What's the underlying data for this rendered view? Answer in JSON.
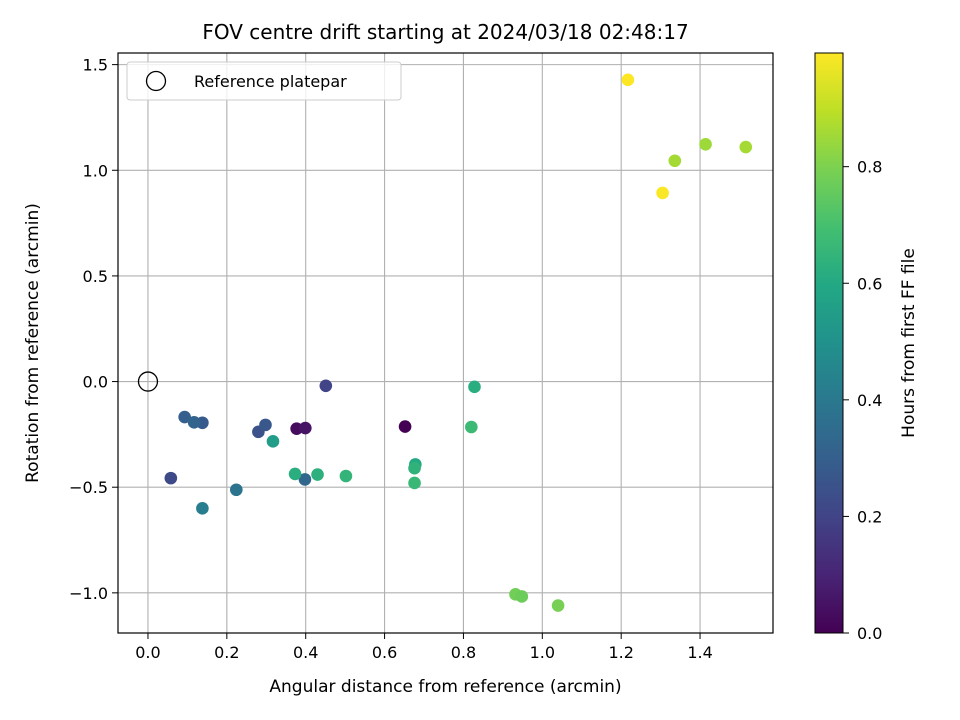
{
  "chart_data": {
    "type": "scatter",
    "title": "FOV centre drift starting at 2024/03/18 02:48:17",
    "xlabel": "Angular distance from reference (arcmin)",
    "ylabel": "Rotation from reference (arcmin)",
    "xlim": [
      -0.076,
      1.585
    ],
    "ylim": [
      -1.19,
      1.555
    ],
    "xticks": [
      0.0,
      0.2,
      0.4,
      0.6,
      0.8,
      1.0,
      1.2,
      1.4
    ],
    "xtick_labels": [
      "0.0",
      "0.2",
      "0.4",
      "0.6",
      "0.8",
      "1.0",
      "1.2",
      "1.4"
    ],
    "yticks": [
      1.5,
      1.0,
      0.5,
      0.0,
      -0.5,
      -1.0
    ],
    "ytick_labels": [
      "1.5",
      "1.0",
      "0.5",
      "0.0",
      "−0.5",
      "−1.0"
    ],
    "grid": true,
    "legend": {
      "placement": "upper-left",
      "entries": [
        "Reference platepar"
      ]
    },
    "reference_point": {
      "x": 0.0,
      "y": 0.0,
      "label": "Reference platepar"
    },
    "colormap": "viridis",
    "colorbar": {
      "label": "Hours from first FF file",
      "range": [
        0.0,
        0.995
      ],
      "ticks": [
        0.0,
        0.2,
        0.4,
        0.6,
        0.8
      ],
      "tick_labels": [
        "0.0",
        "0.2",
        "0.4",
        "0.6",
        "0.8"
      ]
    },
    "points": [
      {
        "x": 0.652,
        "y": -0.213,
        "hours": 0.0
      },
      {
        "x": 0.377,
        "y": -0.223,
        "hours": 0.03
      },
      {
        "x": 0.399,
        "y": -0.22,
        "hours": 0.05
      },
      {
        "x": 0.451,
        "y": -0.02,
        "hours": 0.2
      },
      {
        "x": 0.058,
        "y": -0.457,
        "hours": 0.22
      },
      {
        "x": 0.28,
        "y": -0.238,
        "hours": 0.25
      },
      {
        "x": 0.298,
        "y": -0.205,
        "hours": 0.27
      },
      {
        "x": 0.138,
        "y": -0.195,
        "hours": 0.28
      },
      {
        "x": 0.093,
        "y": -0.168,
        "hours": 0.3
      },
      {
        "x": 0.117,
        "y": -0.193,
        "hours": 0.32
      },
      {
        "x": 0.398,
        "y": -0.463,
        "hours": 0.33
      },
      {
        "x": 0.224,
        "y": -0.512,
        "hours": 0.38
      },
      {
        "x": 0.138,
        "y": -0.6,
        "hours": 0.42
      },
      {
        "x": 0.317,
        "y": -0.283,
        "hours": 0.55
      },
      {
        "x": 0.373,
        "y": -0.437,
        "hours": 0.62
      },
      {
        "x": 0.43,
        "y": -0.44,
        "hours": 0.63
      },
      {
        "x": 0.502,
        "y": -0.447,
        "hours": 0.65
      },
      {
        "x": 0.678,
        "y": -0.392,
        "hours": 0.6
      },
      {
        "x": 0.676,
        "y": -0.41,
        "hours": 0.64
      },
      {
        "x": 0.676,
        "y": -0.48,
        "hours": 0.66
      },
      {
        "x": 0.82,
        "y": -0.215,
        "hours": 0.67
      },
      {
        "x": 0.828,
        "y": -0.025,
        "hours": 0.62
      },
      {
        "x": 0.932,
        "y": -1.007,
        "hours": 0.78
      },
      {
        "x": 0.948,
        "y": -1.017,
        "hours": 0.77
      },
      {
        "x": 1.04,
        "y": -1.06,
        "hours": 0.79
      },
      {
        "x": 1.305,
        "y": 0.893,
        "hours": 0.99
      },
      {
        "x": 1.217,
        "y": 1.428,
        "hours": 0.995
      },
      {
        "x": 1.336,
        "y": 1.045,
        "hours": 0.86
      },
      {
        "x": 1.414,
        "y": 1.123,
        "hours": 0.85
      },
      {
        "x": 1.516,
        "y": 1.11,
        "hours": 0.86
      }
    ]
  }
}
